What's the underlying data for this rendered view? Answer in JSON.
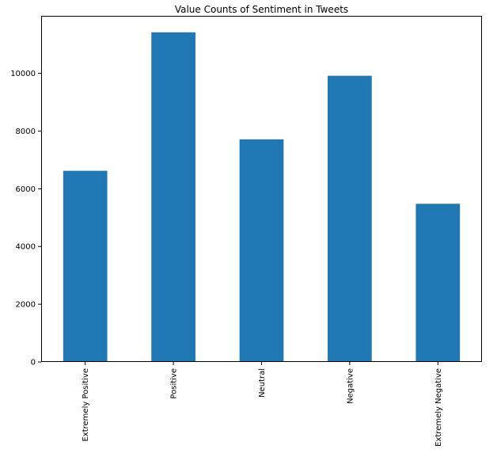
{
  "chart_data": {
    "type": "bar",
    "title": "Value Counts of Sentiment in Tweets",
    "xlabel": "",
    "ylabel": "",
    "categories": [
      "Extremely Positive",
      "Positive",
      "Neutral",
      "Negative",
      "Extremely Negative"
    ],
    "values": [
      6624,
      11422,
      7713,
      9917,
      5481
    ],
    "ylim": [
      0,
      11993
    ],
    "yticks": [
      "0",
      "2000",
      "4000",
      "6000",
      "8000",
      "10000"
    ],
    "ytick_values": [
      0,
      2000,
      4000,
      6000,
      8000,
      10000
    ],
    "grid": false,
    "legend": "none",
    "bar_color": "#1f77b4"
  }
}
